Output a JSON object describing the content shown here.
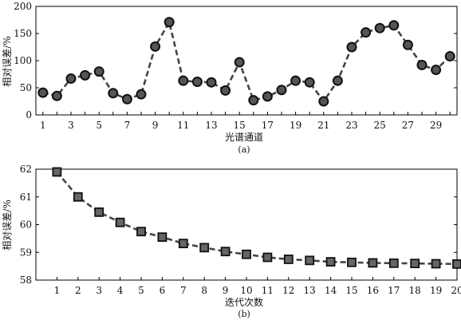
{
  "chart_data": [
    {
      "type": "line",
      "panel": "(a)",
      "xlabel": "光谱通道",
      "ylabel": "相对误差/%",
      "x": [
        1,
        2,
        3,
        4,
        5,
        6,
        7,
        8,
        9,
        10,
        11,
        12,
        13,
        14,
        15,
        16,
        17,
        18,
        19,
        20,
        21,
        22,
        23,
        24,
        25,
        26,
        27,
        28,
        29,
        30
      ],
      "x_tick_labels": [
        "1",
        "3",
        "5",
        "7",
        "9",
        "11",
        "13",
        "15",
        "17",
        "19",
        "21",
        "23",
        "25",
        "27",
        "29"
      ],
      "y_tick_labels": [
        "0",
        "50",
        "100",
        "150",
        "200"
      ],
      "xlim": [
        0.5,
        30.5
      ],
      "ylim": [
        0,
        200
      ],
      "series": [
        {
          "marker": "circle",
          "values": [
            41,
            35,
            67,
            73,
            80,
            40,
            29,
            38,
            126,
            171,
            63,
            61,
            60,
            45,
            97,
            27,
            34,
            46,
            63,
            60,
            25,
            63,
            125,
            152,
            160,
            165,
            129,
            92,
            83,
            108
          ]
        }
      ],
      "line_style": "dashed",
      "marker_color": "#555555",
      "line_color": "#444444",
      "grid": false
    },
    {
      "type": "line",
      "panel": "(b)",
      "xlabel": "迭代次数",
      "ylabel": "相对误差/%",
      "x": [
        1,
        2,
        3,
        4,
        5,
        6,
        7,
        8,
        9,
        10,
        11,
        12,
        13,
        14,
        15,
        16,
        17,
        18,
        19,
        20
      ],
      "x_tick_labels": [
        "1",
        "2",
        "3",
        "4",
        "5",
        "6",
        "7",
        "8",
        "9",
        "10",
        "11",
        "12",
        "13",
        "14",
        "15",
        "16",
        "17",
        "18",
        "19",
        "20"
      ],
      "y_tick_labels": [
        "58",
        "59",
        "60",
        "61",
        "62"
      ],
      "xlim": [
        0,
        20
      ],
      "ylim": [
        58,
        62
      ],
      "series": [
        {
          "marker": "square",
          "values": [
            61.9,
            61.0,
            60.45,
            60.08,
            59.75,
            59.55,
            59.32,
            59.17,
            59.03,
            58.93,
            58.82,
            58.75,
            58.71,
            58.66,
            58.64,
            58.62,
            58.61,
            58.6,
            58.59,
            58.58
          ]
        }
      ],
      "line_style": "dashed",
      "marker_color": "#666666",
      "line_color": "#444444",
      "grid": false
    }
  ]
}
